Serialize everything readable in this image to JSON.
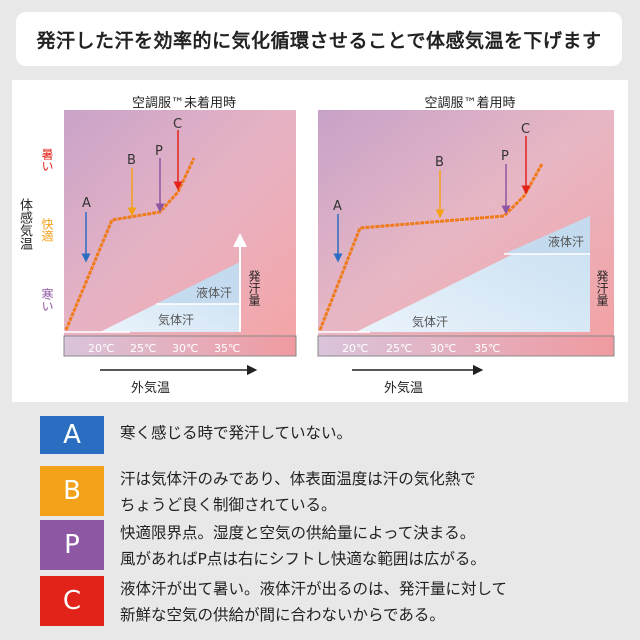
{
  "header": {
    "title": "発汗した汗を効率的に気化循環させることで体感気温を下げます"
  },
  "vertical_axis": {
    "label": "体感気温",
    "hot": "暑い",
    "comfort": "快適",
    "cold": "寒い"
  },
  "charts": [
    {
      "title": "空調服™未着用時",
      "liquid": "液体汗",
      "vapor": "気体汗",
      "sweat_amount": "発汗量"
    },
    {
      "title": "空調服™着用時",
      "liquid": "液体汗",
      "vapor": "気体汗",
      "sweat_amount": "発汗量"
    }
  ],
  "ticks": [
    "20℃",
    "25℃",
    "30℃",
    "35℃"
  ],
  "x_axis_label": "外気温",
  "points": {
    "A": "A",
    "B": "B",
    "P": "P",
    "C": "C"
  },
  "legend": [
    {
      "key": "A",
      "color": "#2a6dc1",
      "text1": "寒く感じる時で発汗していない。",
      "text2": ""
    },
    {
      "key": "B",
      "color": "#f4a11a",
      "text1": "汗は気体汗のみであり、体表面温度は汗の気化熱で",
      "text2": "ちょうど良く制御されている。"
    },
    {
      "key": "P",
      "color": "#8e57a3",
      "text1": "快適限界点。湿度と空気の供給量によって決まる。",
      "text2": "風があればP点は右にシフトし快適な範囲は広がる。"
    },
    {
      "key": "C",
      "color": "#e2231a",
      "text1": "液体汗が出て暑い。液体汗が出るのは、発汗量に対して",
      "text2": "新鮮な空気の供給が間に合わないからである。"
    }
  ],
  "colors": {
    "hot": "#e2231a",
    "comfort": "#f4a11a",
    "cold": "#8e57a3",
    "curve": "#f07b1a",
    "A": "#2a6dc1",
    "B": "#f4a11a",
    "P": "#8e57a3",
    "C": "#e2231a"
  }
}
